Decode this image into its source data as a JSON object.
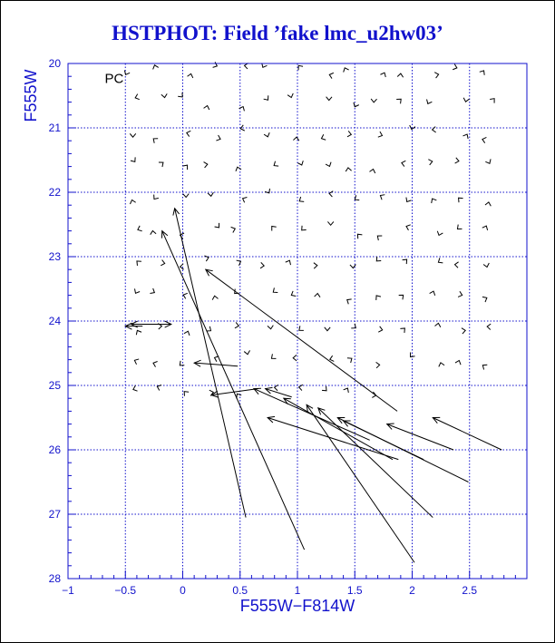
{
  "page": {
    "title": "HSTPHOT: Field ’fake lmc_u2hw03’"
  },
  "chart_data": {
    "type": "scatter",
    "title": "HSTPHOT: Field ’fake lmc_u2hw03’",
    "xlabel": "F555W−F814W",
    "ylabel": "F555W",
    "panel_label": "PC",
    "xlim": [
      -1,
      3
    ],
    "ylim": [
      28,
      20
    ],
    "grid": true,
    "colors": {
      "axis": "#1111cc",
      "grid": "#1111cc",
      "marks": "#000000",
      "title": "#1111cc"
    },
    "x_ticks": [
      {
        "value": -1,
        "label": "−1"
      },
      {
        "value": -0.5,
        "label": "−0.5"
      },
      {
        "value": 0,
        "label": "0"
      },
      {
        "value": 0.5,
        "label": "0.5"
      },
      {
        "value": 1,
        "label": "1"
      },
      {
        "value": 1.5,
        "label": "1.5"
      },
      {
        "value": 2,
        "label": "2"
      },
      {
        "value": 2.5,
        "label": "2.5"
      }
    ],
    "y_ticks": [
      {
        "value": 20,
        "label": "20"
      },
      {
        "value": 21,
        "label": "21"
      },
      {
        "value": 22,
        "label": "22"
      },
      {
        "value": 23,
        "label": "23"
      },
      {
        "value": 24,
        "label": "24"
      },
      {
        "value": 25,
        "label": "25"
      },
      {
        "value": 26,
        "label": "26"
      },
      {
        "value": 27,
        "label": "27"
      },
      {
        "value": 28,
        "label": "28"
      }
    ],
    "x_gridlines": [
      -0.5,
      0,
      0.5,
      1,
      1.5,
      2,
      2.5
    ],
    "y_gridlines": [
      21,
      22,
      23,
      24,
      25,
      26,
      27
    ],
    "vectors": [
      {
        "x0": 0.55,
        "y0": 27.05,
        "x1": -0.07,
        "y1": 22.25
      },
      {
        "x0": 1.06,
        "y0": 27.55,
        "x1": -0.18,
        "y1": 22.6
      },
      {
        "x0": 2.02,
        "y0": 27.75,
        "x1": 1.08,
        "y1": 25.3
      },
      {
        "x0": 2.18,
        "y0": 27.05,
        "x1": 1.18,
        "y1": 25.35
      },
      {
        "x0": 2.49,
        "y0": 26.5,
        "x1": 1.35,
        "y1": 25.5
      },
      {
        "x0": 2.78,
        "y0": 26.0,
        "x1": 2.18,
        "y1": 25.5
      },
      {
        "x0": 2.36,
        "y0": 26.0,
        "x1": 1.78,
        "y1": 25.6
      },
      {
        "x0": 2.1,
        "y0": 26.15,
        "x1": 1.4,
        "y1": 25.55
      },
      {
        "x0": 1.88,
        "y0": 26.15,
        "x1": 0.74,
        "y1": 25.5
      },
      {
        "x0": 1.83,
        "y0": 26.15,
        "x1": 0.88,
        "y1": 25.2
      },
      {
        "x0": 1.63,
        "y0": 25.85,
        "x1": 0.62,
        "y1": 25.05
      },
      {
        "x0": 1.87,
        "y0": 25.4,
        "x1": 0.2,
        "y1": 23.2
      },
      {
        "x0": 0.48,
        "y0": 24.7,
        "x1": 0.1,
        "y1": 24.65
      },
      {
        "x0": 0.66,
        "y0": 25.05,
        "x1": 0.25,
        "y1": 25.15
      },
      {
        "x0": 0.95,
        "y0": 25.18,
        "x1": 0.72,
        "y1": 25.05
      },
      {
        "x0": -0.2,
        "y0": 24.05,
        "x1": -0.45,
        "y1": 24.05
      },
      {
        "x0": -0.2,
        "y0": 24.05,
        "x1": -0.1,
        "y1": 24.05
      },
      {
        "x0": -0.35,
        "y0": 24.08,
        "x1": -0.5,
        "y1": 24.08
      }
    ]
  }
}
